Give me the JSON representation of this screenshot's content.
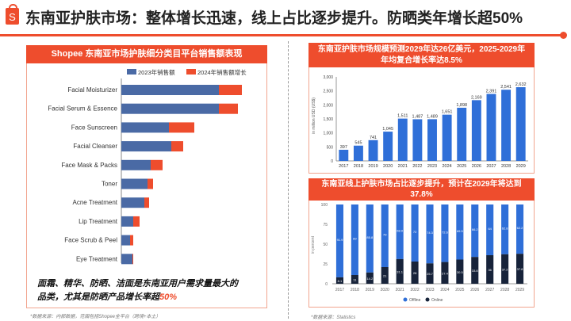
{
  "header": {
    "title": "东南亚护肤市场：整体增长迅速，线上占比逐步提升。防晒类年增长超50%",
    "logo_letter": "S"
  },
  "left_panel": {
    "title": "Shopee 东南亚市场护肤细分类目平台销售额表现",
    "note_line1": "面霜、精华、防晒、洁面是东南亚用户需求量最大的",
    "note_line2_prefix": "品类，尤其是防晒产品增长率超",
    "note_line2_highlight": "50%",
    "source": "*数据来源：内部数据，范围包括Shopee全平台（跨境+本土）"
  },
  "chart_data": [
    {
      "type": "bar",
      "orientation": "horizontal",
      "stacked": true,
      "categories": [
        "Facial Moisturizer",
        "Facial Serum & Essence",
        "Face Sunscreen",
        "Facial Cleanser",
        "Face Mask & Packs",
        "Toner",
        "Acne Treatment",
        "Lip Treatment",
        "Face Scrub & Peel",
        "Eye Treatment"
      ],
      "series": [
        {
          "name": "2023年销售额",
          "color": "#4a6aa5",
          "values": [
            123,
            123,
            60,
            63,
            37,
            33,
            29,
            15,
            11,
            14
          ]
        },
        {
          "name": "2024年销售额增长",
          "color": "#ee4d2d",
          "values": [
            29,
            24,
            32,
            15,
            15,
            7,
            6,
            8,
            4,
            1
          ]
        }
      ],
      "legend": "top"
    },
    {
      "type": "bar",
      "title": "东南亚护肤市场规模预测2029年达26亿美元，2025-2029年年均复合增长率达8.5%",
      "ylabel": "in million USD (US$)",
      "ylim": [
        0,
        3000
      ],
      "yticks": [
        "0",
        "500",
        "1,000",
        "1,500",
        "2,000",
        "2,500",
        "3,000"
      ],
      "categories": [
        "2017",
        "2018",
        "2019",
        "2020",
        "2021",
        "2022",
        "2023",
        "2024",
        "2025",
        "2026",
        "2027",
        "2028",
        "2029"
      ],
      "values": [
        397,
        545,
        741,
        1045,
        1511,
        1487,
        1489,
        1651,
        1898,
        2169,
        2391,
        2541,
        2632
      ],
      "labels": [
        "397",
        "545",
        "741",
        "1,045",
        "1,511",
        "1,487",
        "1,489",
        "1,651",
        "1,898",
        "2,169",
        "2,391",
        "2,541",
        "2,632"
      ],
      "color": "#2f6fd8"
    },
    {
      "type": "bar",
      "stacked": true,
      "title": "东南亚线上护肤市场占比逐步提升，预计在2029年将达到37.8%",
      "ylabel": "in percent",
      "ylim": [
        0,
        100
      ],
      "yticks": [
        "0",
        "25",
        "50",
        "75",
        "100"
      ],
      "categories": [
        "2017",
        "2018",
        "2019",
        "2020",
        "2021",
        "2022",
        "2023",
        "2024",
        "2025",
        "2026",
        "2027",
        "2028",
        "2029"
      ],
      "series": [
        {
          "name": "Online",
          "color": "#17233a",
          "values": [
            8.1,
            11,
            14.2,
            21,
            31.1,
            28,
            25.7,
            27.4,
            30.5,
            33.8,
            36,
            37.2,
            37.8
          ]
        },
        {
          "name": "Offline",
          "color": "#2f6fd8",
          "values": [
            91.9,
            89,
            85.8,
            79,
            68.9,
            72,
            74.3,
            72.6,
            69.5,
            66.2,
            64,
            62.8,
            62.2
          ]
        }
      ],
      "legend_order": [
        "Offline",
        "Online"
      ],
      "legend": "bottom",
      "source": "*数据来源：Statistics"
    }
  ]
}
